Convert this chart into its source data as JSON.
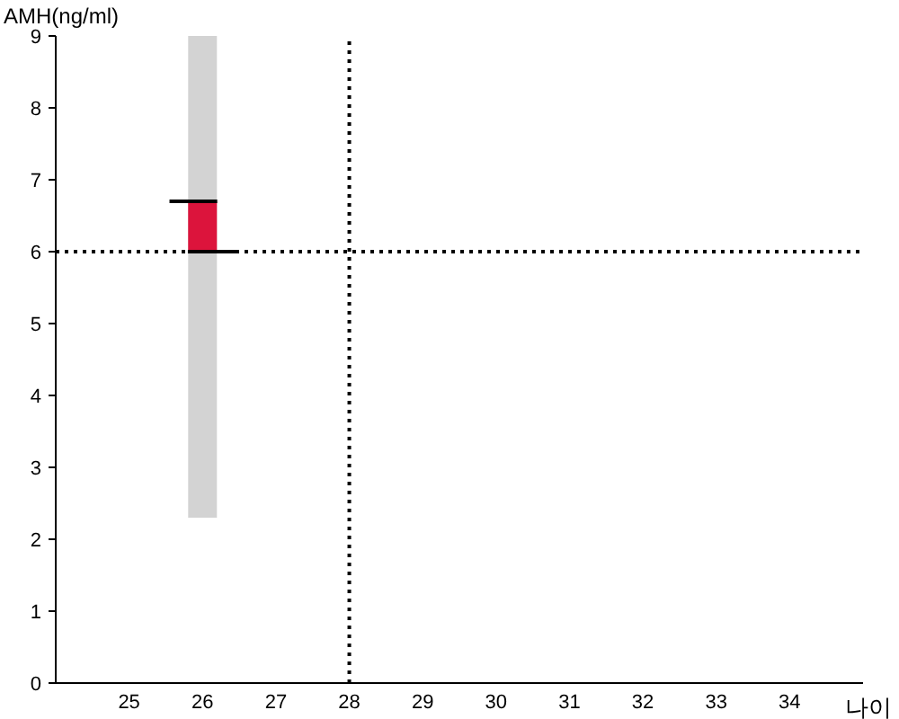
{
  "chart_data": {
    "type": "bar",
    "ylabel": "AMH(ng/ml)",
    "xlabel": "나이",
    "xlim": [
      24,
      35
    ],
    "xticks": [
      25,
      26,
      27,
      28,
      29,
      30,
      31,
      32,
      33,
      34
    ],
    "ylim": [
      0,
      9
    ],
    "yticks": [
      0,
      1,
      2,
      3,
      4,
      5,
      6,
      7,
      8,
      9
    ],
    "grid": false,
    "series": [
      {
        "color": "#d3d3d3",
        "x": [
          26
        ],
        "base": [
          2.3
        ],
        "values": [
          6.7
        ]
      },
      {
        "color": "#dc143c",
        "x": [
          26
        ],
        "base": [
          6
        ],
        "values": [
          0.7
        ]
      },
      {
        "type": "line",
        "color": "#000000",
        "x": [
          25.55,
          26.2
        ],
        "values": [
          6.7,
          6.7
        ]
      },
      {
        "type": "line",
        "color": "#000000",
        "x": [
          25.8,
          26.45
        ],
        "values": [
          6,
          6
        ]
      }
    ],
    "ref_lines": [
      {
        "axis": "x",
        "value": 28,
        "color": "#000000",
        "line_style": "dotted"
      },
      {
        "axis": "y",
        "value": 6,
        "color": "#000000",
        "line_style": "dotted"
      }
    ]
  }
}
